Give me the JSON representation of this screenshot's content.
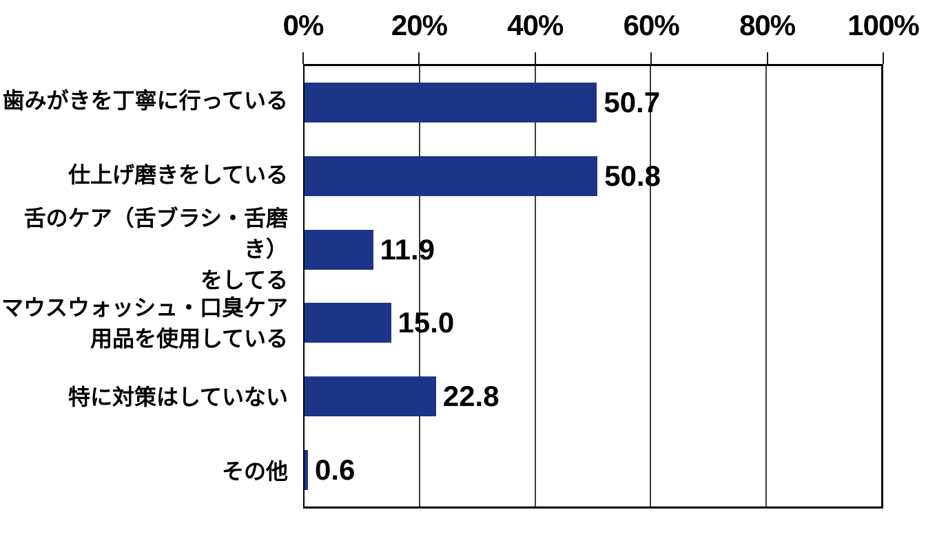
{
  "chart_data": {
    "type": "bar",
    "orientation": "horizontal",
    "title": "",
    "x_axis": {
      "position": "top",
      "tick_labels": [
        "0%",
        "20%",
        "40%",
        "60%",
        "80%",
        "100%"
      ],
      "range": [
        0,
        100
      ],
      "unit": "%",
      "grid": true
    },
    "categories": [
      "歯みがきを丁寧に行っている",
      "仕上げ磨きをしている",
      "舌のケア（舌ブラシ・舌磨き）\nをしてる",
      "マウスウォッシュ・口臭ケア\n用品を使用している",
      "特に対策はしていない",
      "その他"
    ],
    "values": [
      50.7,
      50.8,
      11.9,
      15.0,
      22.8,
      0.6
    ],
    "value_labels": [
      "50.7",
      "50.8",
      "11.9",
      "15.0",
      "22.8",
      "0.6"
    ],
    "bar_color": "#1C3588",
    "gridline_color": "#3d3d3d",
    "legend": false
  }
}
